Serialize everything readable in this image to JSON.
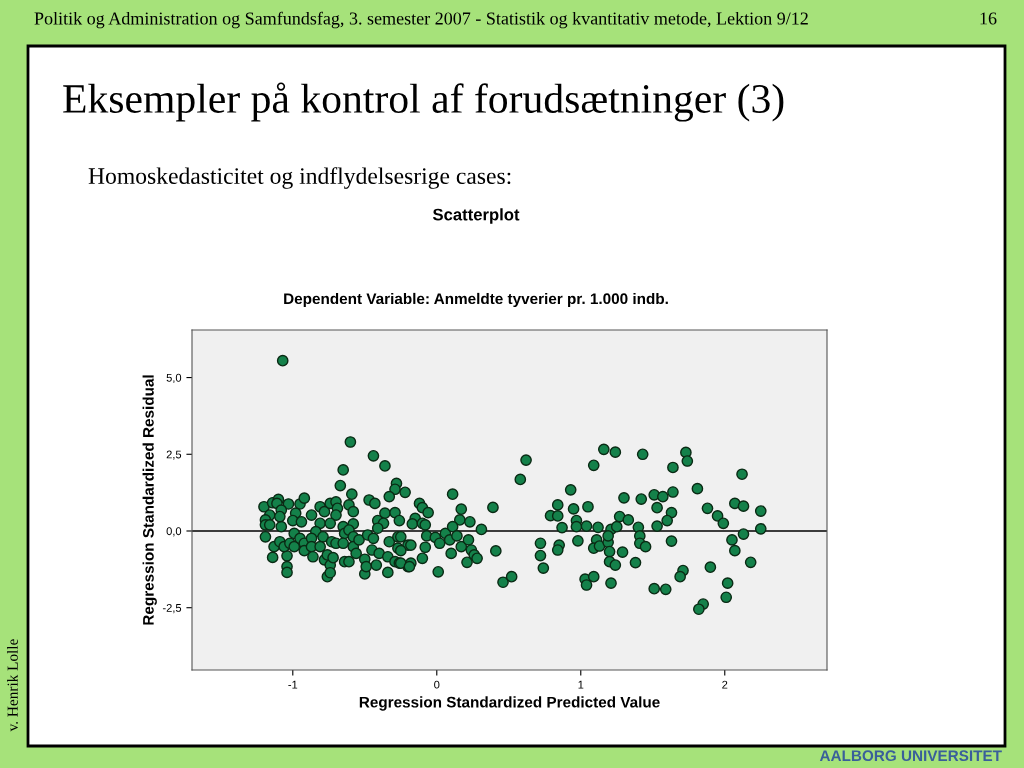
{
  "chart_data": {
    "type": "scatter",
    "title": "Scatterplot",
    "subtitle": "Dependent Variable: Anmeldte tyverier pr. 1.000 indb.",
    "xlabel": "Regression Standardized Predicted Value",
    "ylabel": "Regression Standardized Residual",
    "annotations": [
      "Politik og Administration og Samfundsfag, 3. semester 2007 - Statistik og kvantitativ metode, Lektion 9/12",
      "16",
      "Eksempler på kontrol af forudsætninger (3)",
      "Homoskedasticitet og indflydelsesrige cases:",
      "v. Henrik Lolle",
      "AALBORG UNIVERSITET"
    ],
    "xlim": [
      -1.7,
      2.71
    ],
    "ylim": [
      -4.53,
      6.55
    ],
    "xticks": [
      {
        "value": -1,
        "label": "-1"
      },
      0,
      1,
      2
    ],
    "yticks": [
      {
        "value": 5,
        "label": "5,0"
      },
      {
        "value": 2.5,
        "label": "2,5"
      },
      {
        "value": 0,
        "label": "0,0"
      },
      {
        "value": -2.5,
        "label": "-2,5"
      }
    ],
    "ref_lines": [
      {
        "axis": "y",
        "value": 0,
        "color": "#000000"
      }
    ],
    "grid": false,
    "legend": false,
    "marker": "circle",
    "series": [
      {
        "color": "#14814a",
        "x": [
          -1.07,
          -0.6,
          -0.44,
          -0.36,
          -0.65,
          -0.67,
          -0.59,
          -0.28,
          -0.29,
          -0.22,
          -0.33,
          -1.2,
          -1.14,
          -1.1,
          -1.11,
          -1.03,
          -1.08,
          -1.16,
          -1.19,
          -1.19,
          -1.16,
          -1.08,
          -1.09,
          -1.19,
          -1.13,
          -1.14,
          -1.04,
          -1.04,
          -1.04,
          -1.09,
          -1.06,
          -1.02,
          -0.99,
          -0.95,
          -0.92,
          -0.98,
          -1.0,
          -0.94,
          -0.99,
          -0.95,
          -0.92,
          -0.92,
          -0.87,
          -0.81,
          -0.78,
          -0.81,
          -0.84,
          -0.79,
          -0.87,
          -0.87,
          -0.86,
          -0.81,
          -0.78,
          -0.76,
          -0.74,
          -0.76,
          -0.74,
          -0.72,
          -0.74,
          -0.7,
          -0.69,
          -0.7,
          -0.74,
          -0.73,
          -0.7,
          -0.65,
          -0.64,
          -0.65,
          -0.64,
          -0.61,
          -0.58,
          -0.58,
          -0.61,
          -0.58,
          -0.61,
          -0.58,
          -0.56,
          -0.54,
          -0.5,
          -0.5,
          -0.49,
          -0.47,
          -0.43,
          -0.48,
          -0.44,
          -0.45,
          -0.42,
          -0.4,
          -0.36,
          -0.41,
          -0.37,
          -0.41,
          -0.33,
          -0.34,
          -0.34,
          -0.29,
          -0.26,
          -0.27,
          -0.27,
          -0.29,
          -0.26,
          -0.2,
          -0.2,
          -0.12,
          -0.1,
          -0.06,
          -0.15,
          -0.17,
          -0.1,
          -0.08,
          -0.25,
          -0.07,
          -0.18,
          -0.25,
          -0.08,
          -0.25,
          -0.18,
          -0.19,
          -0.1,
          0.01,
          -0.01,
          0.02,
          0.06,
          0.09,
          0.11,
          0.17,
          0.16,
          0.11,
          0.14,
          0.1,
          0.17,
          0.22,
          0.23,
          0.24,
          0.26,
          0.28,
          0.21,
          0.31,
          0.39,
          0.41,
          0.46,
          0.52,
          0.58,
          0.62,
          0.72,
          0.72,
          0.74,
          0.79,
          0.84,
          0.84,
          0.87,
          0.85,
          0.84,
          0.93,
          0.95,
          0.97,
          0.97,
          0.98,
          1.05,
          1.04,
          1.03,
          1.04,
          1.09,
          1.09,
          1.16,
          1.24,
          1.12,
          1.11,
          1.09,
          1.13,
          1.19,
          1.21,
          1.19,
          1.2,
          1.2,
          1.24,
          1.21,
          1.25,
          1.27,
          1.43,
          1.73,
          1.74,
          1.64,
          2.12,
          1.3,
          1.42,
          1.51,
          1.57,
          1.64,
          1.81,
          1.53,
          1.63,
          1.6,
          1.33,
          1.4,
          1.53,
          1.41,
          1.41,
          1.45,
          1.29,
          1.38,
          1.63,
          1.88,
          1.95,
          1.99,
          2.07,
          2.13,
          2.25,
          2.25,
          2.13,
          2.05,
          2.07,
          2.18,
          1.9,
          1.71,
          1.69,
          1.51,
          1.59,
          1.85,
          1.82,
          2.02,
          2.01
        ],
        "values": [
          5.55,
          2.9,
          2.45,
          2.12,
          1.99,
          1.48,
          1.2,
          1.55,
          1.36,
          1.26,
          1.12,
          0.79,
          0.92,
          1.03,
          0.9,
          0.88,
          0.68,
          0.52,
          0.36,
          0.2,
          0.2,
          0.14,
          0.47,
          -0.19,
          -0.51,
          -0.86,
          -0.81,
          -1.16,
          -1.35,
          -0.35,
          -0.51,
          -0.4,
          -0.51,
          0.88,
          1.07,
          0.58,
          0.34,
          0.3,
          -0.08,
          -0.24,
          -0.4,
          -0.64,
          0.52,
          0.79,
          0.63,
          0.25,
          -0.02,
          -0.19,
          -0.24,
          -0.51,
          -0.84,
          -0.51,
          -0.94,
          -0.78,
          -1.11,
          -1.49,
          -1.36,
          -0.87,
          0.9,
          0.95,
          0.74,
          0.52,
          0.25,
          -0.35,
          -0.4,
          0.14,
          -0.08,
          -0.4,
          -1.0,
          0.85,
          0.63,
          0.23,
          0.03,
          -0.19,
          -1.0,
          -0.51,
          -0.73,
          -0.29,
          -0.92,
          -1.4,
          -1.16,
          1.01,
          0.9,
          -0.13,
          -0.24,
          -0.62,
          -1.11,
          -0.73,
          0.58,
          0.34,
          0.25,
          0.09,
          -0.35,
          -0.84,
          -1.35,
          0.6,
          0.34,
          -0.19,
          -0.56,
          -1.0,
          -1.05,
          -0.46,
          -1.16,
          0.9,
          0.76,
          0.6,
          0.41,
          0.23,
          0.25,
          0.2,
          -0.19,
          -0.16,
          -0.46,
          -0.64,
          -0.53,
          -1.05,
          -1.05,
          -1.16,
          -0.89,
          -1.33,
          -0.21,
          -0.4,
          -0.08,
          -0.29,
          1.2,
          0.71,
          0.36,
          0.14,
          -0.16,
          -0.73,
          -0.51,
          -0.29,
          0.3,
          -0.62,
          -0.78,
          -0.89,
          -1.02,
          0.05,
          0.77,
          -0.65,
          -1.67,
          -1.49,
          1.68,
          2.31,
          -0.4,
          -0.8,
          -1.21,
          0.5,
          0.85,
          0.49,
          0.11,
          -0.46,
          -0.62,
          1.34,
          0.72,
          0.34,
          0.14,
          -0.32,
          0.79,
          0.16,
          -1.57,
          -1.76,
          -1.49,
          2.14,
          2.66,
          2.57,
          0.12,
          -0.29,
          -0.56,
          -0.49,
          -0.37,
          0.05,
          -0.16,
          -0.67,
          -1.0,
          -1.11,
          -1.7,
          0.14,
          0.47,
          2.5,
          2.56,
          2.28,
          2.07,
          1.85,
          1.08,
          1.04,
          1.18,
          1.12,
          1.27,
          1.38,
          0.76,
          0.6,
          0.34,
          0.36,
          0.12,
          0.16,
          -0.16,
          -0.4,
          -0.51,
          -0.69,
          -1.03,
          -0.33,
          0.74,
          0.49,
          0.25,
          0.9,
          0.81,
          0.65,
          0.07,
          -0.1,
          -0.29,
          -0.64,
          -1.02,
          -1.18,
          -1.29,
          -1.49,
          -1.88,
          -1.9,
          -2.38,
          -2.55,
          -1.7,
          -2.16
        ]
      }
    ]
  }
}
